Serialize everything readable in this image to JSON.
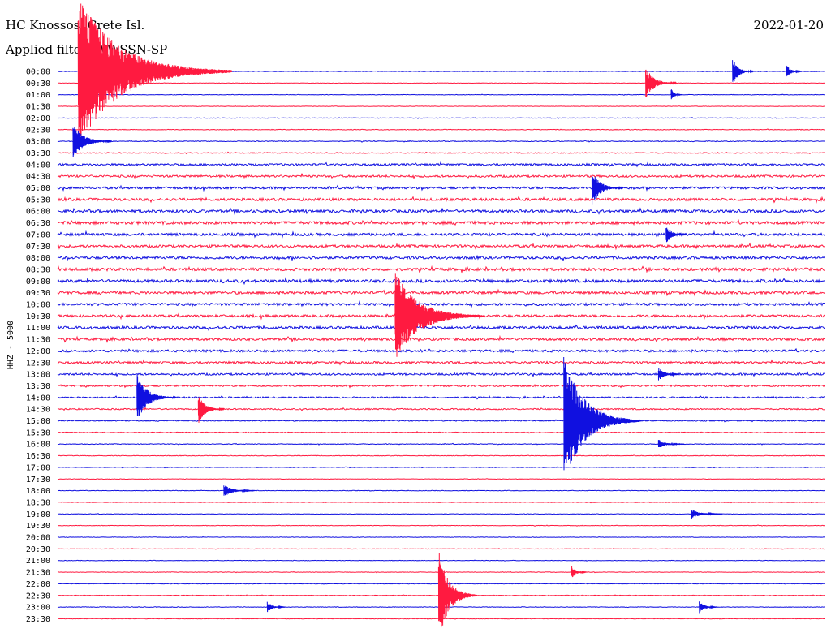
{
  "header": {
    "station": "HC Knossos, Crete Isl.",
    "date": "2022-01-20",
    "filter": "Applied filter: WWSSN-SP"
  },
  "chart_data": {
    "type": "line",
    "title": "HC Knossos, Crete Isl.",
    "subtitle": "Applied filter: WWSSN-SP",
    "date": "2022-01-20",
    "ylabel": "HHZ - 5000",
    "row_labels": [
      "00:00",
      "00:30",
      "01:00",
      "01:30",
      "02:00",
      "02:30",
      "03:00",
      "03:30",
      "04:00",
      "04:30",
      "05:00",
      "05:30",
      "06:00",
      "06:30",
      "07:00",
      "07:30",
      "08:00",
      "08:30",
      "09:00",
      "09:30",
      "10:00",
      "10:30",
      "11:00",
      "11:30",
      "12:00",
      "12:30",
      "13:00",
      "13:30",
      "14:00",
      "14:30",
      "15:00",
      "15:30",
      "16:00",
      "16:30",
      "17:00",
      "17:30",
      "18:00",
      "18:30",
      "19:00",
      "19:30",
      "20:00",
      "20:30",
      "21:00",
      "21:30",
      "22:00",
      "22:30",
      "23:00",
      "23:30"
    ],
    "row_minutes": 30,
    "grid": false,
    "series_colors": {
      "even_rows": "#1010e0",
      "odd_rows": "#ff1a40"
    },
    "noise_level": [
      0.3,
      0.25,
      0.3,
      0.25,
      0.35,
      0.4,
      0.45,
      0.6,
      1.2,
      1.3,
      1.4,
      1.6,
      1.7,
      1.8,
      1.6,
      1.5,
      1.6,
      1.7,
      1.8,
      1.6,
      1.5,
      1.5,
      1.6,
      1.5,
      1.4,
      1.3,
      1.2,
      1.0,
      0.9,
      0.8,
      0.6,
      0.5,
      0.4,
      0.35,
      0.35,
      0.3,
      0.3,
      0.3,
      0.3,
      0.3,
      0.25,
      0.3,
      0.3,
      0.3,
      0.3,
      0.35,
      0.35,
      0.3
    ],
    "events": [
      {
        "row": 0,
        "minute": 0.8,
        "amplitude": 95,
        "duration": 6,
        "color": "odd"
      },
      {
        "row": 1,
        "minute": 23.0,
        "amplitude": 20,
        "duration": 1.2
      },
      {
        "row": 0,
        "minute": 26.4,
        "amplitude": 18,
        "duration": 0.8
      },
      {
        "row": 0,
        "minute": 28.5,
        "amplitude": 9,
        "duration": 0.6
      },
      {
        "row": 2,
        "minute": 24.0,
        "amplitude": 8,
        "duration": 0.4
      },
      {
        "row": 6,
        "minute": 0.6,
        "amplitude": 22,
        "duration": 1.5
      },
      {
        "row": 10,
        "minute": 20.9,
        "amplitude": 22,
        "duration": 1.2
      },
      {
        "row": 14,
        "minute": 23.8,
        "amplitude": 12,
        "duration": 0.8
      },
      {
        "row": 21,
        "minute": 13.2,
        "amplitude": 55,
        "duration": 3.5
      },
      {
        "row": 28,
        "minute": 3.1,
        "amplitude": 30,
        "duration": 1.5
      },
      {
        "row": 29,
        "minute": 5.5,
        "amplitude": 18,
        "duration": 1.0
      },
      {
        "row": 30,
        "minute": 19.8,
        "amplitude": 80,
        "duration": 3.0
      },
      {
        "row": 26,
        "minute": 23.5,
        "amplitude": 9,
        "duration": 0.8
      },
      {
        "row": 36,
        "minute": 6.5,
        "amplitude": 8,
        "duration": 1.2
      },
      {
        "row": 38,
        "minute": 24.8,
        "amplitude": 6,
        "duration": 1.2
      },
      {
        "row": 45,
        "minute": 14.9,
        "amplitude": 58,
        "duration": 1.5
      },
      {
        "row": 43,
        "minute": 20.1,
        "amplitude": 8,
        "duration": 0.6
      },
      {
        "row": 46,
        "minute": 8.2,
        "amplitude": 7,
        "duration": 0.7
      },
      {
        "row": 46,
        "minute": 25.1,
        "amplitude": 8,
        "duration": 0.7
      },
      {
        "row": 32,
        "minute": 23.5,
        "amplitude": 6,
        "duration": 1.0
      }
    ]
  }
}
